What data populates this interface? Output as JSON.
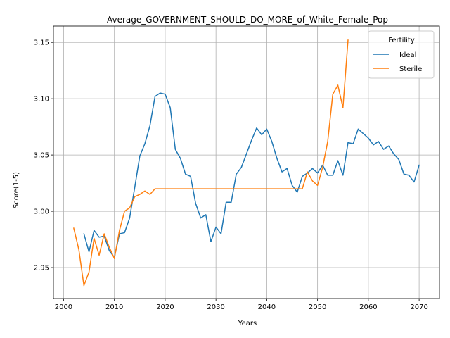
{
  "chart_data": {
    "type": "line",
    "title": "Average_GOVERNMENT_SHOULD_DO_MORE_of_White_Female_Pop",
    "xlabel": "Years",
    "ylabel": "Score(1-5)",
    "xlim": [
      1998,
      2074
    ],
    "ylim": [
      2.9225,
      3.1645
    ],
    "xticks": [
      2000,
      2010,
      2020,
      2030,
      2040,
      2050,
      2060,
      2070
    ],
    "yticks": [
      2.95,
      3.0,
      3.05,
      3.1,
      3.15
    ],
    "xtick_labels": [
      "2000",
      "2010",
      "2020",
      "2030",
      "2040",
      "2050",
      "2060",
      "2070"
    ],
    "ytick_labels": [
      "2.95",
      "3.00",
      "3.05",
      "3.10",
      "3.15"
    ],
    "grid": true,
    "legend": {
      "title": "Fertility",
      "position": "top-right"
    },
    "series": [
      {
        "name": "Ideal",
        "color": "#1f77b4",
        "x": [
          2004,
          2005,
          2006,
          2007,
          2008,
          2009,
          2010,
          2011,
          2012,
          2013,
          2014,
          2015,
          2016,
          2017,
          2018,
          2019,
          2020,
          2021,
          2022,
          2023,
          2024,
          2025,
          2026,
          2027,
          2028,
          2029,
          2030,
          2031,
          2032,
          2033,
          2034,
          2035,
          2036,
          2037,
          2038,
          2039,
          2040,
          2041,
          2042,
          2043,
          2044,
          2045,
          2046,
          2047,
          2048,
          2049,
          2050,
          2051,
          2052,
          2053,
          2054,
          2055,
          2056,
          2057,
          2058,
          2059,
          2060,
          2061,
          2062,
          2063,
          2064,
          2065,
          2066,
          2067,
          2068,
          2069,
          2070
        ],
        "y": [
          2.98,
          2.964,
          2.983,
          2.977,
          2.978,
          2.965,
          2.959,
          2.98,
          2.981,
          2.994,
          3.021,
          3.049,
          3.06,
          3.076,
          3.102,
          3.105,
          3.104,
          3.092,
          3.055,
          3.047,
          3.033,
          3.031,
          3.007,
          2.994,
          2.997,
          2.973,
          2.986,
          2.98,
          3.008,
          3.008,
          3.033,
          3.039,
          3.051,
          3.063,
          3.074,
          3.068,
          3.073,
          3.062,
          3.047,
          3.035,
          3.038,
          3.023,
          3.017,
          3.031,
          3.034,
          3.038,
          3.034,
          3.041,
          3.032,
          3.032,
          3.045,
          3.032,
          3.061,
          3.06,
          3.073,
          3.069,
          3.065,
          3.059,
          3.062,
          3.055,
          3.058,
          3.051,
          3.046,
          3.033,
          3.032,
          3.026,
          3.041
        ]
      },
      {
        "name": "Sterile",
        "color": "#ff7f0e",
        "x": [
          2002,
          2003,
          2004,
          2005,
          2006,
          2007,
          2008,
          2009,
          2010,
          2011,
          2012,
          2013,
          2014,
          2015,
          2016,
          2017,
          2018,
          2019,
          2020,
          2021,
          2022,
          2023,
          2024,
          2025,
          2026,
          2027,
          2028,
          2029,
          2030,
          2031,
          2032,
          2033,
          2034,
          2035,
          2036,
          2037,
          2038,
          2039,
          2040,
          2041,
          2042,
          2043,
          2044,
          2045,
          2046,
          2047,
          2048,
          2049,
          2050,
          2051,
          2052,
          2053,
          2054,
          2055,
          2056
        ],
        "y": [
          2.985,
          2.966,
          2.934,
          2.946,
          2.976,
          2.961,
          2.98,
          2.968,
          2.958,
          2.983,
          3.0,
          3.003,
          3.013,
          3.015,
          3.018,
          3.015,
          3.02,
          3.02,
          3.02,
          3.02,
          3.02,
          3.02,
          3.02,
          3.02,
          3.02,
          3.02,
          3.02,
          3.02,
          3.02,
          3.02,
          3.02,
          3.02,
          3.02,
          3.02,
          3.02,
          3.02,
          3.02,
          3.02,
          3.02,
          3.02,
          3.02,
          3.02,
          3.02,
          3.02,
          3.02,
          3.02,
          3.035,
          3.027,
          3.023,
          3.039,
          3.062,
          3.104,
          3.112,
          3.092,
          3.152
        ]
      }
    ]
  }
}
